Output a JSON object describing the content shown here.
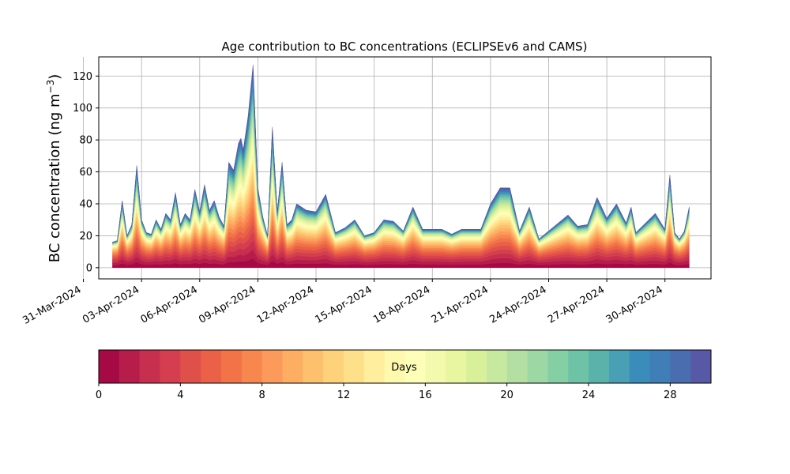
{
  "chart_data": {
    "type": "area",
    "stacked": true,
    "title": "Age contribution to BC concentrations (ECLIPSEv6 and CAMS)",
    "ylabel_main": "BC concentration (ng m",
    "ylabel_sup": "−3",
    "ylabel_close": ")",
    "xlabel": "",
    "ylim": [
      -7,
      132
    ],
    "yticks": [
      0,
      20,
      40,
      60,
      80,
      100,
      120
    ],
    "xlim": [
      "2024-03-31T19:00",
      "2024-05-02T09:00"
    ],
    "xticks": [
      "31-Mar-2024",
      "03-Apr-2024",
      "06-Apr-2024",
      "09-Apr-2024",
      "12-Apr-2024",
      "15-Apr-2024",
      "18-Apr-2024",
      "21-Apr-2024",
      "24-Apr-2024",
      "27-Apr-2024",
      "30-Apr-2024"
    ],
    "grid": true,
    "series_note_days": [
      0,
      30
    ],
    "total_series": {
      "x": [
        "2024-04-01T12:00",
        "2024-04-01T18:00",
        "2024-04-02T00:00",
        "2024-04-02T06:00",
        "2024-04-02T12:00",
        "2024-04-02T18:00",
        "2024-04-03T00:00",
        "2024-04-03T06:00",
        "2024-04-03T12:00",
        "2024-04-03T18:00",
        "2024-04-04T00:00",
        "2024-04-04T06:00",
        "2024-04-04T12:00",
        "2024-04-04T18:00",
        "2024-04-05T00:00",
        "2024-04-05T06:00",
        "2024-04-05T12:00",
        "2024-04-05T18:00",
        "2024-04-06T00:00",
        "2024-04-06T06:00",
        "2024-04-06T12:00",
        "2024-04-06T18:00",
        "2024-04-07T00:00",
        "2024-04-07T06:00",
        "2024-04-07T12:00",
        "2024-04-07T18:00",
        "2024-04-08T00:00",
        "2024-04-08T03:00",
        "2024-04-08T06:00",
        "2024-04-08T12:00",
        "2024-04-08T18:00",
        "2024-04-09T00:00",
        "2024-04-09T06:00",
        "2024-04-09T12:00",
        "2024-04-09T18:00",
        "2024-04-10T00:00",
        "2024-04-10T06:00",
        "2024-04-10T12:00",
        "2024-04-10T18:00",
        "2024-04-11T00:00",
        "2024-04-11T12:00",
        "2024-04-12T00:00",
        "2024-04-12T12:00",
        "2024-04-13T00:00",
        "2024-04-13T12:00",
        "2024-04-14T00:00",
        "2024-04-14T12:00",
        "2024-04-15T00:00",
        "2024-04-15T12:00",
        "2024-04-16T00:00",
        "2024-04-16T12:00",
        "2024-04-17T00:00",
        "2024-04-17T12:00",
        "2024-04-18T00:00",
        "2024-04-18T12:00",
        "2024-04-19T00:00",
        "2024-04-19T12:00",
        "2024-04-20T00:00",
        "2024-04-20T12:00",
        "2024-04-21T00:00",
        "2024-04-21T12:00",
        "2024-04-22T00:00",
        "2024-04-22T12:00",
        "2024-04-23T00:00",
        "2024-04-23T12:00",
        "2024-04-24T00:00",
        "2024-04-24T12:00",
        "2024-04-25T00:00",
        "2024-04-25T12:00",
        "2024-04-26T00:00",
        "2024-04-26T12:00",
        "2024-04-27T00:00",
        "2024-04-27T12:00",
        "2024-04-27T18:00",
        "2024-04-28T00:00",
        "2024-04-28T06:00",
        "2024-04-28T12:00",
        "2024-04-29T00:00",
        "2024-04-29T12:00",
        "2024-04-30T00:00",
        "2024-04-30T06:00",
        "2024-04-30T12:00",
        "2024-04-30T18:00",
        "2024-05-01T00:00",
        "2024-05-01T06:00"
      ],
      "y": [
        16,
        17,
        42,
        20,
        27,
        64,
        30,
        22,
        21,
        30,
        24,
        34,
        30,
        47,
        27,
        34,
        30,
        49,
        35,
        52,
        36,
        42,
        32,
        26,
        66,
        61,
        78,
        81,
        74,
        95,
        127,
        50,
        32,
        20,
        88,
        35,
        66,
        27,
        30,
        40,
        36,
        35,
        46,
        22,
        25,
        30,
        20,
        22,
        30,
        29,
        23,
        38,
        24,
        24,
        24,
        21,
        24,
        24,
        24,
        40,
        50,
        50,
        23,
        38,
        18,
        23,
        28,
        33,
        26,
        27,
        44,
        31,
        40,
        34,
        28,
        38,
        22,
        28,
        34,
        24,
        58,
        22,
        18,
        23,
        38
      ]
    },
    "colorbar": {
      "label": "Days",
      "range": [
        0,
        30
      ],
      "ticks": [
        0,
        4,
        8,
        12,
        16,
        20,
        24,
        28
      ],
      "bins": 30,
      "colormap": [
        "#9e0142",
        "#b21748",
        "#c62d4f",
        "#d6404e",
        "#e35549",
        "#ef6a45",
        "#f7804c",
        "#fb9859",
        "#fdb063",
        "#fdc570",
        "#fed982",
        "#feea97",
        "#fff8ad",
        "#fdfeb8",
        "#f1f9a9",
        "#e2f399",
        "#cdeb9e",
        "#b5e1a2",
        "#9ad7a4",
        "#7ecca5",
        "#62bca6",
        "#4ea6b1",
        "#3a8fbb",
        "#3f7cb5",
        "#4d68ad",
        "#5e4fa2"
      ]
    }
  }
}
